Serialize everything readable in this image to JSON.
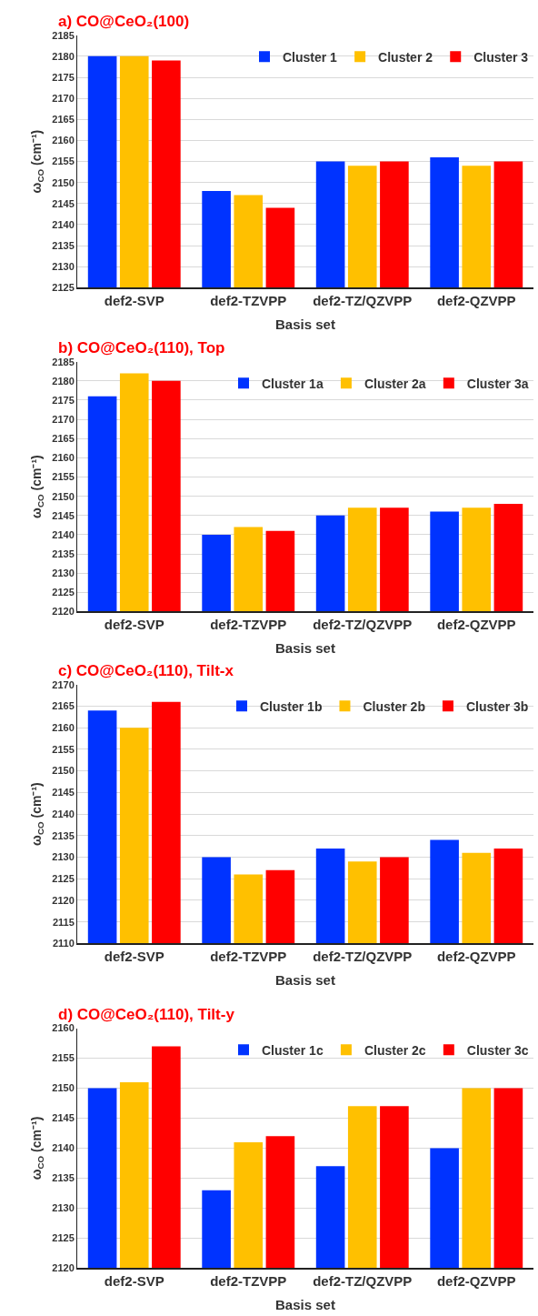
{
  "chart_data": [
    {
      "type": "bar",
      "title": "a) CO@CeO₂(100)",
      "xlabel": "Basis set",
      "ylabel": "ω$_{CO}$ (cm⁻¹)",
      "categories": [
        "def2-SVP",
        "def2-TZVPP",
        "def2-TZ/QZVPP",
        "def2-QZVPP"
      ],
      "ylim": [
        2125,
        2185
      ],
      "yticks": [
        2125,
        2130,
        2135,
        2140,
        2145,
        2150,
        2155,
        2160,
        2165,
        2170,
        2175,
        2180,
        2185
      ],
      "grid": "y",
      "legend": "top right",
      "series": [
        {
          "name": "Cluster 1",
          "color": "#0033ff",
          "values": [
            2180,
            2148,
            2155,
            2156
          ]
        },
        {
          "name": "Cluster 2",
          "color": "#ffc000",
          "values": [
            2180,
            2147,
            2154,
            2154
          ]
        },
        {
          "name": "Cluster 3",
          "color": "#ff0000",
          "values": [
            2179,
            2144,
            2155,
            2155
          ]
        }
      ]
    },
    {
      "type": "bar",
      "title": "b) CO@CeO₂(110), Top",
      "xlabel": "Basis set",
      "ylabel": "ω$_{CO}$ (cm⁻¹)",
      "categories": [
        "def2-SVP",
        "def2-TZVPP",
        "def2-TZ/QZVPP",
        "def2-QZVPP"
      ],
      "ylim": [
        2120,
        2185
      ],
      "yticks": [
        2120,
        2125,
        2130,
        2135,
        2140,
        2145,
        2150,
        2155,
        2160,
        2165,
        2170,
        2175,
        2180,
        2185
      ],
      "grid": "y",
      "legend": "top right",
      "series": [
        {
          "name": "Cluster 1a",
          "color": "#0033ff",
          "values": [
            2176,
            2140,
            2145,
            2146
          ]
        },
        {
          "name": "Cluster 2a",
          "color": "#ffc000",
          "values": [
            2182,
            2142,
            2147,
            2147
          ]
        },
        {
          "name": "Cluster 3a",
          "color": "#ff0000",
          "values": [
            2180,
            2141,
            2147,
            2148
          ]
        }
      ]
    },
    {
      "type": "bar",
      "title": "c) CO@CeO₂(110), Tilt-x",
      "xlabel": "Basis set",
      "ylabel": "ω$_{CO}$ (cm⁻¹)",
      "categories": [
        "def2-SVP",
        "def2-TZVPP",
        "def2-TZ/QZVPP",
        "def2-QZVPP"
      ],
      "ylim": [
        2110,
        2170
      ],
      "yticks": [
        2110,
        2115,
        2120,
        2125,
        2130,
        2135,
        2140,
        2145,
        2150,
        2155,
        2160,
        2165,
        2170
      ],
      "grid": "y",
      "legend": "top right",
      "series": [
        {
          "name": "Cluster 1b",
          "color": "#0033ff",
          "values": [
            2164,
            2130,
            2132,
            2134
          ]
        },
        {
          "name": "Cluster 2b",
          "color": "#ffc000",
          "values": [
            2160,
            2126,
            2129,
            2131
          ]
        },
        {
          "name": "Cluster 3b",
          "color": "#ff0000",
          "values": [
            2166,
            2127,
            2130,
            2132
          ]
        }
      ]
    },
    {
      "type": "bar",
      "title": "d) CO@CeO₂(110), Tilt-y",
      "xlabel": "Basis set",
      "ylabel": "ω$_{CO}$ (cm⁻¹)",
      "categories": [
        "def2-SVP",
        "def2-TZVPP",
        "def2-TZ/QZVPP",
        "def2-QZVPP"
      ],
      "ylim": [
        2120,
        2160
      ],
      "yticks": [
        2120,
        2125,
        2130,
        2135,
        2140,
        2145,
        2150,
        2155,
        2160
      ],
      "grid": "y",
      "legend": "top right",
      "series": [
        {
          "name": "Cluster 1c",
          "color": "#0033ff",
          "values": [
            2150,
            2133,
            2137,
            2140
          ]
        },
        {
          "name": "Cluster 2c",
          "color": "#ffc000",
          "values": [
            2151,
            2141,
            2147,
            2150
          ]
        },
        {
          "name": "Cluster 3c",
          "color": "#ff0000",
          "values": [
            2157,
            2142,
            2147,
            2150
          ]
        }
      ]
    }
  ]
}
